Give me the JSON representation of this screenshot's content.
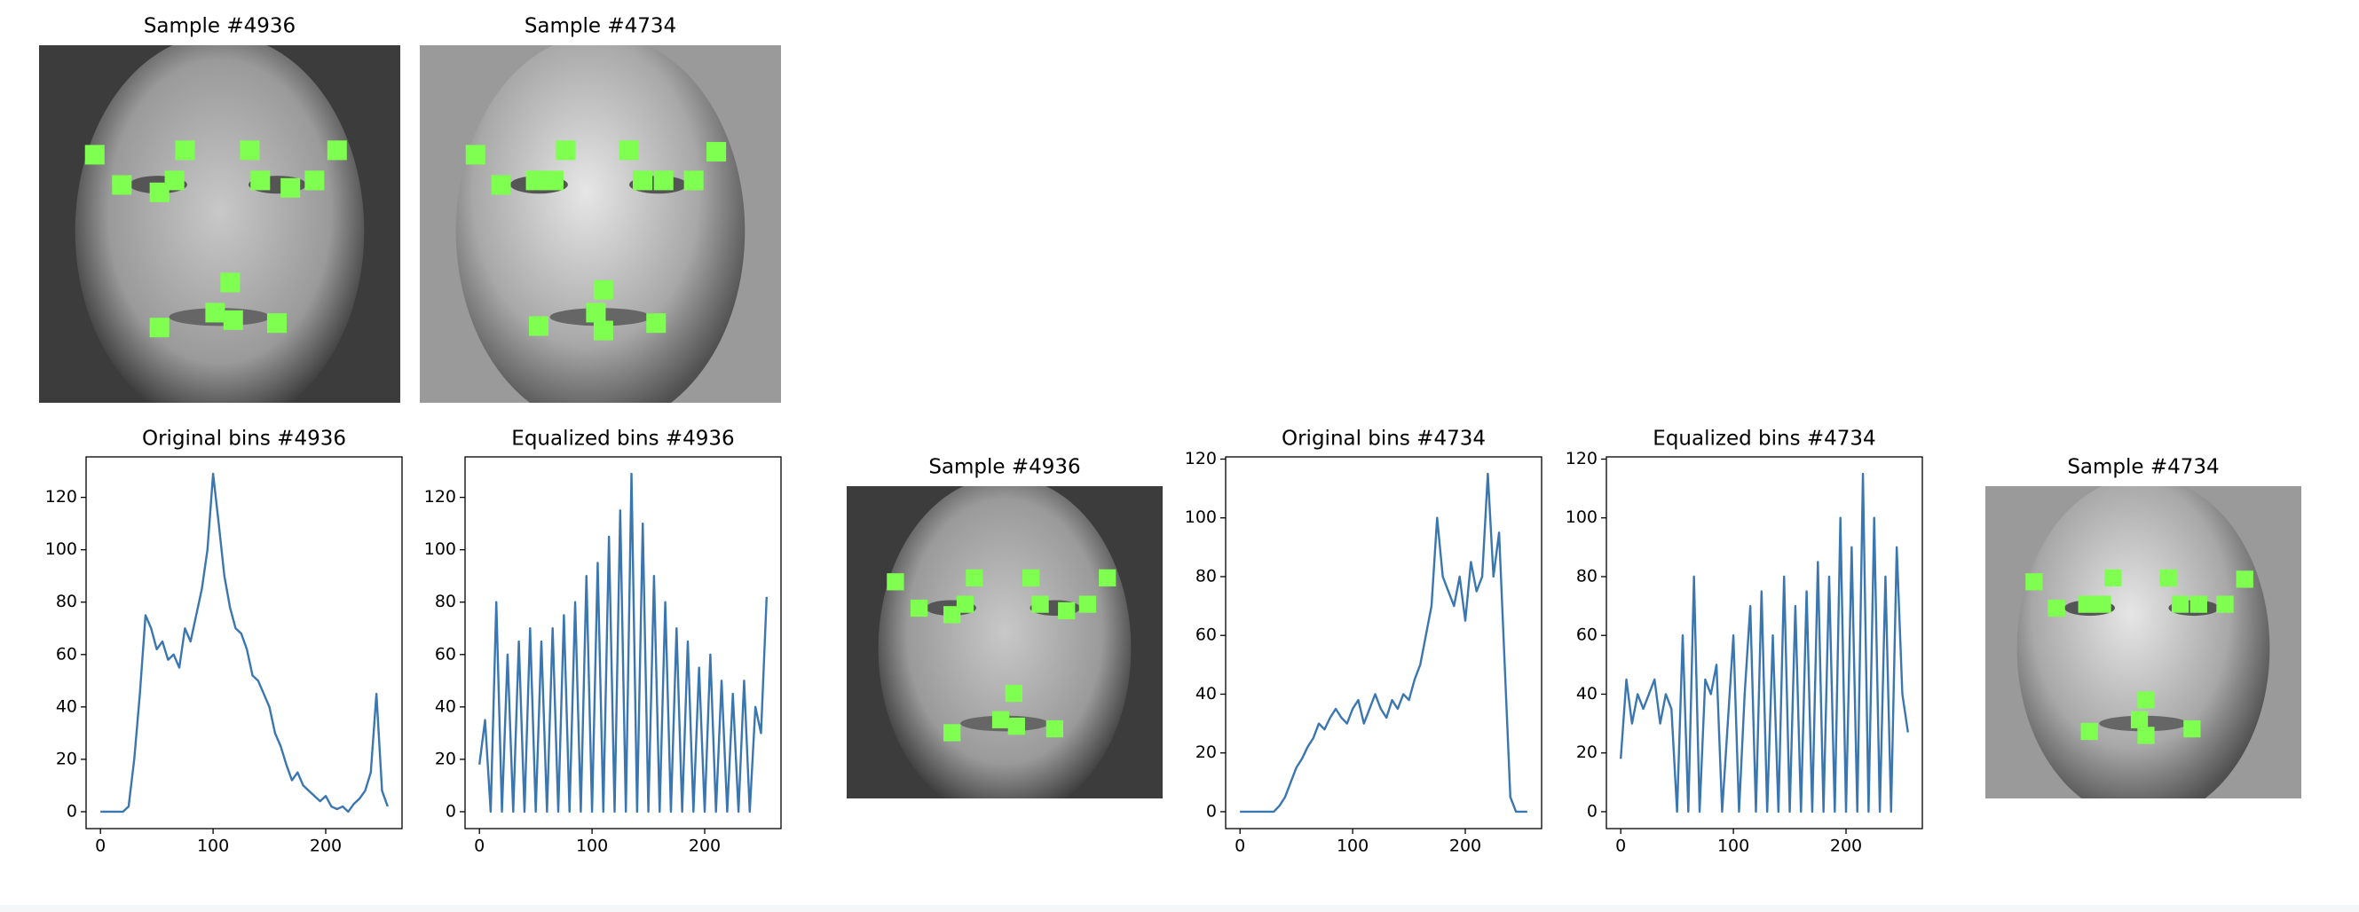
{
  "chart_data": [
    {
      "type": "image",
      "title": "Sample #4936",
      "xlim": [
        0,
        96
      ],
      "ylim": [
        96,
        0
      ],
      "color": "#7fff4f",
      "x": [
        14.8,
        22,
        32,
        36,
        38.8,
        56,
        58.8,
        66.8,
        73.2,
        79.2,
        50.8,
        32,
        46.8,
        51.6,
        63.2
      ],
      "y": [
        29.4,
        37.5,
        39.5,
        36.3,
        28.2,
        28.2,
        36.3,
        38.3,
        36.3,
        28.2,
        63.7,
        75.8,
        71.8,
        73.8,
        74.6
      ]
    },
    {
      "type": "image",
      "title": "Sample #4734",
      "xlim": [
        0,
        96
      ],
      "ylim": [
        96,
        0
      ],
      "color": "#7fff4f",
      "x": [
        14.8,
        21.6,
        30.8,
        35.6,
        38.8,
        55.6,
        59.2,
        64.8,
        72.8,
        78.8,
        48.8,
        31.6,
        46.8,
        48.8,
        62.8
      ],
      "y": [
        29.4,
        37.5,
        36.3,
        36.3,
        28.2,
        28.2,
        36.3,
        36.3,
        36.3,
        28.6,
        65.7,
        75.4,
        71.8,
        76.6,
        74.6
      ]
    },
    {
      "type": "line",
      "title": "Original bins #4936",
      "color": "#3a76af",
      "xlim": [
        -12.75,
        267.75
      ],
      "ylim": [
        -6.45,
        135.45
      ],
      "xticks": [
        0,
        100,
        200
      ],
      "yticks": [
        0,
        20,
        40,
        60,
        80,
        100,
        120
      ],
      "x": [
        0,
        5,
        10,
        15,
        20,
        25,
        30,
        35,
        40,
        45,
        50,
        55,
        60,
        65,
        70,
        75,
        80,
        85,
        90,
        95,
        100,
        105,
        110,
        115,
        120,
        125,
        130,
        135,
        140,
        145,
        150,
        155,
        160,
        165,
        170,
        175,
        180,
        185,
        190,
        195,
        200,
        205,
        210,
        215,
        220,
        225,
        230,
        235,
        240,
        245,
        250,
        255
      ],
      "values": [
        0,
        0,
        0,
        0,
        0,
        2,
        20,
        45,
        75,
        70,
        62,
        65,
        58,
        60,
        55,
        70,
        65,
        75,
        85,
        100,
        129,
        110,
        90,
        78,
        70,
        68,
        62,
        52,
        50,
        45,
        40,
        30,
        25,
        18,
        12,
        15,
        10,
        8,
        6,
        4,
        6,
        2,
        1,
        2,
        0,
        3,
        5,
        8,
        15,
        45,
        8,
        2
      ]
    },
    {
      "type": "line",
      "title": "Equalized bins #4936",
      "color": "#3a76af",
      "xlim": [
        -12.75,
        267.75
      ],
      "ylim": [
        -6.45,
        135.45
      ],
      "xticks": [
        0,
        100,
        200
      ],
      "yticks": [
        0,
        20,
        40,
        60,
        80,
        100,
        120
      ],
      "x": [
        0,
        5,
        10,
        15,
        20,
        25,
        30,
        35,
        40,
        45,
        50,
        55,
        60,
        65,
        70,
        75,
        80,
        85,
        90,
        95,
        100,
        105,
        110,
        115,
        120,
        125,
        130,
        135,
        140,
        145,
        150,
        155,
        160,
        165,
        170,
        175,
        180,
        185,
        190,
        195,
        200,
        205,
        210,
        215,
        220,
        225,
        230,
        235,
        240,
        245,
        250,
        255
      ],
      "values": [
        18,
        35,
        0,
        80,
        0,
        60,
        0,
        65,
        0,
        70,
        0,
        65,
        0,
        70,
        0,
        75,
        0,
        80,
        0,
        90,
        0,
        95,
        0,
        105,
        0,
        115,
        0,
        129,
        0,
        110,
        0,
        90,
        0,
        80,
        0,
        70,
        0,
        65,
        0,
        55,
        0,
        60,
        0,
        50,
        0,
        45,
        0,
        50,
        0,
        40,
        30,
        82
      ]
    },
    {
      "type": "image",
      "title": "Sample #4936",
      "xlim": [
        0,
        96
      ],
      "ylim": [
        96,
        0
      ],
      "color": "#7fff4f",
      "x": [
        14.8,
        22,
        32,
        36,
        38.8,
        56,
        58.8,
        66.8,
        73.2,
        79.2,
        50.8,
        32,
        46.8,
        51.6,
        63.2
      ],
      "y": [
        29.4,
        37.5,
        39.5,
        36.3,
        28.2,
        28.2,
        36.3,
        38.3,
        36.3,
        28.2,
        63.7,
        75.8,
        71.8,
        73.8,
        74.6
      ]
    },
    {
      "type": "line",
      "title": "Original bins #4734",
      "color": "#3a76af",
      "xlim": [
        -12.75,
        267.75
      ],
      "ylim": [
        -5.75,
        120.75
      ],
      "xticks": [
        0,
        100,
        200
      ],
      "yticks": [
        0,
        20,
        40,
        60,
        80,
        100,
        120
      ],
      "x": [
        0,
        5,
        10,
        15,
        20,
        25,
        30,
        35,
        40,
        45,
        50,
        55,
        60,
        65,
        70,
        75,
        80,
        85,
        90,
        95,
        100,
        105,
        110,
        115,
        120,
        125,
        130,
        135,
        140,
        145,
        150,
        155,
        160,
        165,
        170,
        175,
        180,
        185,
        190,
        195,
        200,
        205,
        210,
        215,
        220,
        225,
        230,
        235,
        240,
        245,
        250,
        255
      ],
      "values": [
        0,
        0,
        0,
        0,
        0,
        0,
        0,
        2,
        5,
        10,
        15,
        18,
        22,
        25,
        30,
        28,
        32,
        35,
        32,
        30,
        35,
        38,
        30,
        35,
        40,
        35,
        32,
        38,
        35,
        40,
        38,
        45,
        50,
        60,
        70,
        100,
        80,
        75,
        70,
        80,
        65,
        85,
        75,
        80,
        115,
        80,
        95,
        50,
        5,
        0,
        0,
        0
      ]
    },
    {
      "type": "line",
      "title": "Equalized bins #4734",
      "color": "#3a76af",
      "xlim": [
        -12.75,
        267.75
      ],
      "ylim": [
        -5.75,
        120.75
      ],
      "xticks": [
        0,
        100,
        200
      ],
      "yticks": [
        0,
        20,
        40,
        60,
        80,
        100,
        120
      ],
      "x": [
        0,
        5,
        10,
        15,
        20,
        25,
        30,
        35,
        40,
        45,
        50,
        55,
        60,
        65,
        70,
        75,
        80,
        85,
        90,
        95,
        100,
        105,
        110,
        115,
        120,
        125,
        130,
        135,
        140,
        145,
        150,
        155,
        160,
        165,
        170,
        175,
        180,
        185,
        190,
        195,
        200,
        205,
        210,
        215,
        220,
        225,
        230,
        235,
        240,
        245,
        250,
        255
      ],
      "values": [
        18,
        45,
        30,
        40,
        35,
        40,
        45,
        30,
        40,
        35,
        0,
        60,
        0,
        80,
        0,
        45,
        40,
        50,
        0,
        30,
        60,
        0,
        40,
        70,
        0,
        75,
        0,
        60,
        0,
        80,
        0,
        70,
        0,
        75,
        0,
        85,
        0,
        80,
        0,
        100,
        0,
        90,
        0,
        115,
        0,
        100,
        0,
        80,
        0,
        90,
        40,
        27
      ]
    },
    {
      "type": "image",
      "title": "Sample #4734",
      "xlim": [
        0,
        96
      ],
      "ylim": [
        96,
        0
      ],
      "color": "#7fff4f",
      "x": [
        14.8,
        21.6,
        30.8,
        35.6,
        38.8,
        55.6,
        59.2,
        64.8,
        72.8,
        78.8,
        48.8,
        31.6,
        46.8,
        48.8,
        62.8
      ],
      "y": [
        29.4,
        37.5,
        36.3,
        36.3,
        28.2,
        28.2,
        36.3,
        36.3,
        36.3,
        28.6,
        65.7,
        75.4,
        71.8,
        76.6,
        74.6
      ]
    }
  ]
}
